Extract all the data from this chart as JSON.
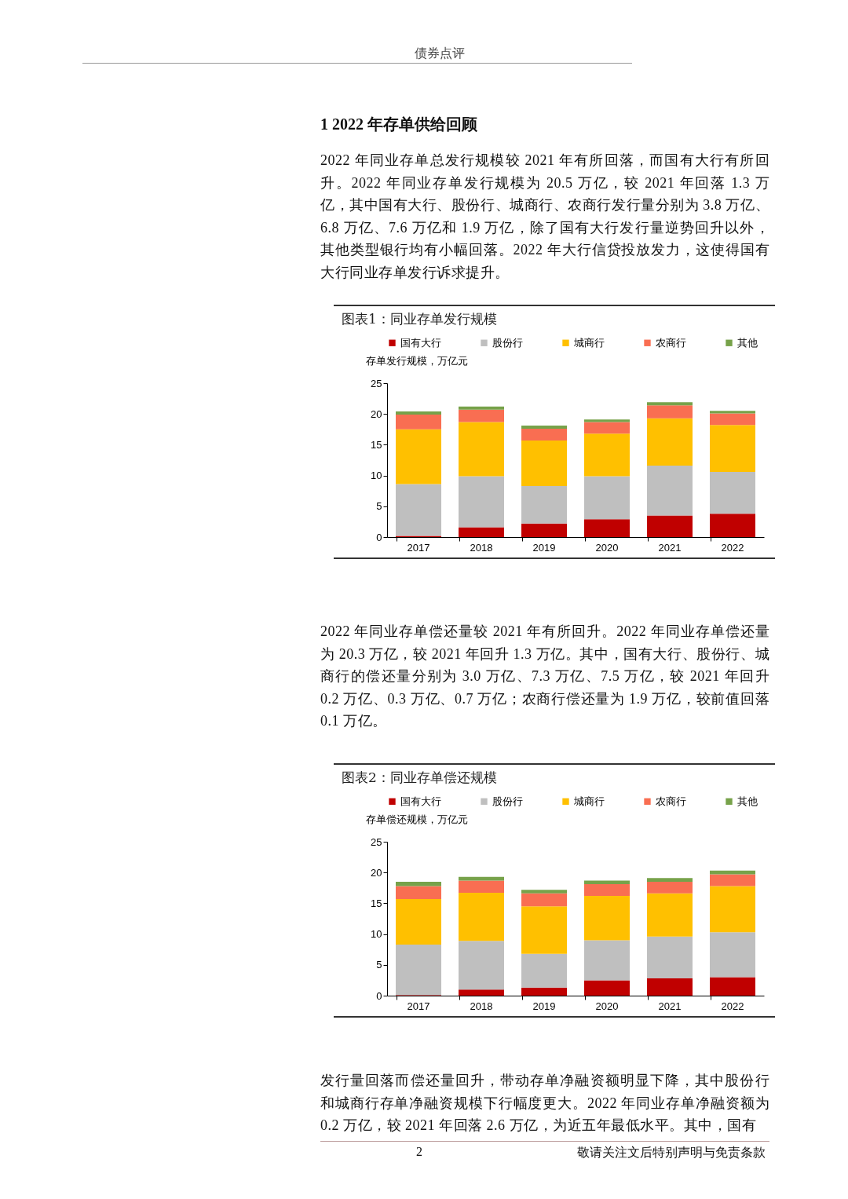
{
  "chart_data": [
    {
      "type": "bar",
      "title": "图表1：同业存单发行规模",
      "ylabel": "存单发行规模，万亿元",
      "categories": [
        "2017",
        "2018",
        "2019",
        "2020",
        "2021",
        "2022"
      ],
      "stacked": true,
      "series": [
        {
          "name": "国有大行",
          "color": "#c00000",
          "values": [
            0.2,
            1.6,
            2.2,
            2.9,
            3.5,
            3.8
          ]
        },
        {
          "name": "股份行",
          "color": "#bfbfbf",
          "values": [
            8.4,
            8.3,
            6.1,
            7.0,
            8.1,
            6.8
          ]
        },
        {
          "name": "城商行",
          "color": "#ffc000",
          "values": [
            8.9,
            8.8,
            7.4,
            6.9,
            7.7,
            7.6
          ]
        },
        {
          "name": "农商行",
          "color": "#f96e52",
          "values": [
            2.4,
            2.0,
            1.9,
            1.9,
            2.1,
            1.9
          ]
        },
        {
          "name": "其他",
          "color": "#77a24a",
          "values": [
            0.5,
            0.5,
            0.5,
            0.4,
            0.5,
            0.4
          ]
        }
      ],
      "ylim": [
        0,
        25
      ],
      "yticks": [
        0,
        5,
        10,
        15,
        20,
        25
      ],
      "legend": "top",
      "annotations": [
        "债券点评",
        "1   2022 年存单供给回顾",
        "2022 年同业存单总发行规模较 2021 年有所回落，而国有大行有所回升。2022 年同业存单发行规模为 20.5 万亿，较 2021 年回落 1.3 万亿，其中国有大行、股份行、城商行、农商行发行量分别为 3.8 万亿、6.8 万亿、7.6 万亿和 1.9 万亿，除了国有大行发行量逆势回升以外，其他类型银行均有小幅回落。2022 年大行信贷投放发力，这使得国有大行同业存单发行诉求提升。"
      ]
    },
    {
      "type": "bar",
      "title": "图表2：同业存单偿还规模",
      "ylabel": "存单偿还规模，万亿元",
      "categories": [
        "2017",
        "2018",
        "2019",
        "2020",
        "2021",
        "2022"
      ],
      "stacked": true,
      "series": [
        {
          "name": "国有大行",
          "color": "#c00000",
          "values": [
            0.1,
            1.0,
            1.3,
            2.5,
            2.8,
            3.0
          ]
        },
        {
          "name": "股份行",
          "color": "#bfbfbf",
          "values": [
            8.2,
            7.9,
            5.5,
            6.5,
            6.8,
            7.3
          ]
        },
        {
          "name": "城商行",
          "color": "#ffc000",
          "values": [
            7.4,
            7.8,
            7.7,
            7.2,
            7.0,
            7.5
          ]
        },
        {
          "name": "农商行",
          "color": "#f96e52",
          "values": [
            2.1,
            2.0,
            2.1,
            1.9,
            1.9,
            1.9
          ]
        },
        {
          "name": "其他",
          "color": "#77a24a",
          "values": [
            0.7,
            0.6,
            0.6,
            0.6,
            0.6,
            0.6
          ]
        }
      ],
      "ylim": [
        0,
        25
      ],
      "yticks": [
        0,
        5,
        10,
        15,
        20,
        25
      ],
      "legend": "top",
      "annotations": [
        "2022 年同业存单偿还量较 2021 年有所回升。2022 年同业存单偿还量为 20.3 万亿，较 2021 年回升 1.3 万亿。其中，国有大行、股份行、城商行的偿还量分别为 3.0 万亿、7.3 万亿、7.5 万亿，较 2021 年回升 0.2 万亿、0.3 万亿、0.7 万亿；农商行偿还量为 1.9 万亿，较前值回落 0.1 万亿。",
        "发行量回落而偿还量回升，带动存单净融资额明显下降，其中股份行和城商行存单净融资规模下行幅度更大。2022 年同业存单净融资额为 0.2 万亿，较 2021 年回落 2.6 万亿，为近五年最低水平。其中，国有",
        "2",
        "敬请关注文后特别声明与免责条款"
      ]
    }
  ]
}
